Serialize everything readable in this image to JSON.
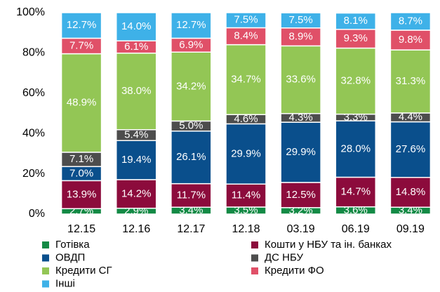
{
  "chart_data": {
    "type": "stacked_bar",
    "categories": [
      "12.15",
      "12.16",
      "12.17",
      "12.18",
      "03.19",
      "06.19",
      "09.19"
    ],
    "series": [
      {
        "name": "Готівка",
        "color": "#138a45",
        "values": [
          2.7,
          2.9,
          3.4,
          3.5,
          3.2,
          3.6,
          3.4
        ],
        "value_labels": [
          "2.7%",
          "2.9%",
          "3.4%",
          "3.5%",
          "3.2%",
          "3.6%",
          "3.4%"
        ]
      },
      {
        "name": "Кошти у НБУ та ін. банках",
        "color": "#8c0b3c",
        "values": [
          13.9,
          14.2,
          11.7,
          11.4,
          12.5,
          14.7,
          14.8
        ],
        "value_labels": [
          "13.9%",
          "14.2%",
          "11.7%",
          "11.4%",
          "12.5%",
          "14.7%",
          "14.8%"
        ]
      },
      {
        "name": "ОВДП",
        "color": "#0a4f8c",
        "values": [
          7.0,
          19.4,
          26.1,
          29.9,
          29.9,
          28.0,
          27.6
        ],
        "value_labels": [
          "7.0%",
          "19.4%",
          "26.1%",
          "29.9%",
          "29.9%",
          "28.0%",
          "27.6%"
        ]
      },
      {
        "name": "ДС НБУ",
        "color": "#4d4d4d",
        "values": [
          7.1,
          5.4,
          5.0,
          4.6,
          4.3,
          3.3,
          4.4
        ],
        "value_labels": [
          "7.1%",
          "5.4%",
          "5.0%",
          "4.6%",
          "4.3%",
          "3.3%",
          "4.4%"
        ]
      },
      {
        "name": "Кредити СГ",
        "color": "#93c655",
        "values": [
          48.9,
          38.0,
          34.2,
          34.7,
          33.6,
          32.8,
          31.3
        ],
        "value_labels": [
          "48.9%",
          "38.0%",
          "34.2%",
          "34.7%",
          "33.6%",
          "32.8%",
          "31.3%"
        ]
      },
      {
        "name": "Кредити ФО",
        "color": "#e05068",
        "values": [
          7.7,
          6.1,
          6.9,
          8.4,
          8.9,
          9.3,
          9.8
        ],
        "value_labels": [
          "7.7%",
          "6.1%",
          "6.9%",
          "8.4%",
          "8.9%",
          "9.3%",
          "9.8%"
        ]
      },
      {
        "name": "Інші",
        "color": "#3eb1e8",
        "values": [
          12.7,
          14.0,
          12.7,
          7.5,
          7.5,
          8.1,
          8.7
        ],
        "value_labels": [
          "12.7%",
          "14.0%",
          "12.7%",
          "7.5%",
          "7.5%",
          "8.1%",
          "8.7%"
        ]
      }
    ],
    "ylim": [
      0,
      100
    ],
    "yticks": [
      {
        "value": 0,
        "label": "0%"
      },
      {
        "value": 20,
        "label": "20%"
      },
      {
        "value": 40,
        "label": "40%"
      },
      {
        "value": 60,
        "label": "60%"
      },
      {
        "value": 80,
        "label": "80%"
      },
      {
        "value": 100,
        "label": "100%"
      }
    ],
    "grid": false
  }
}
